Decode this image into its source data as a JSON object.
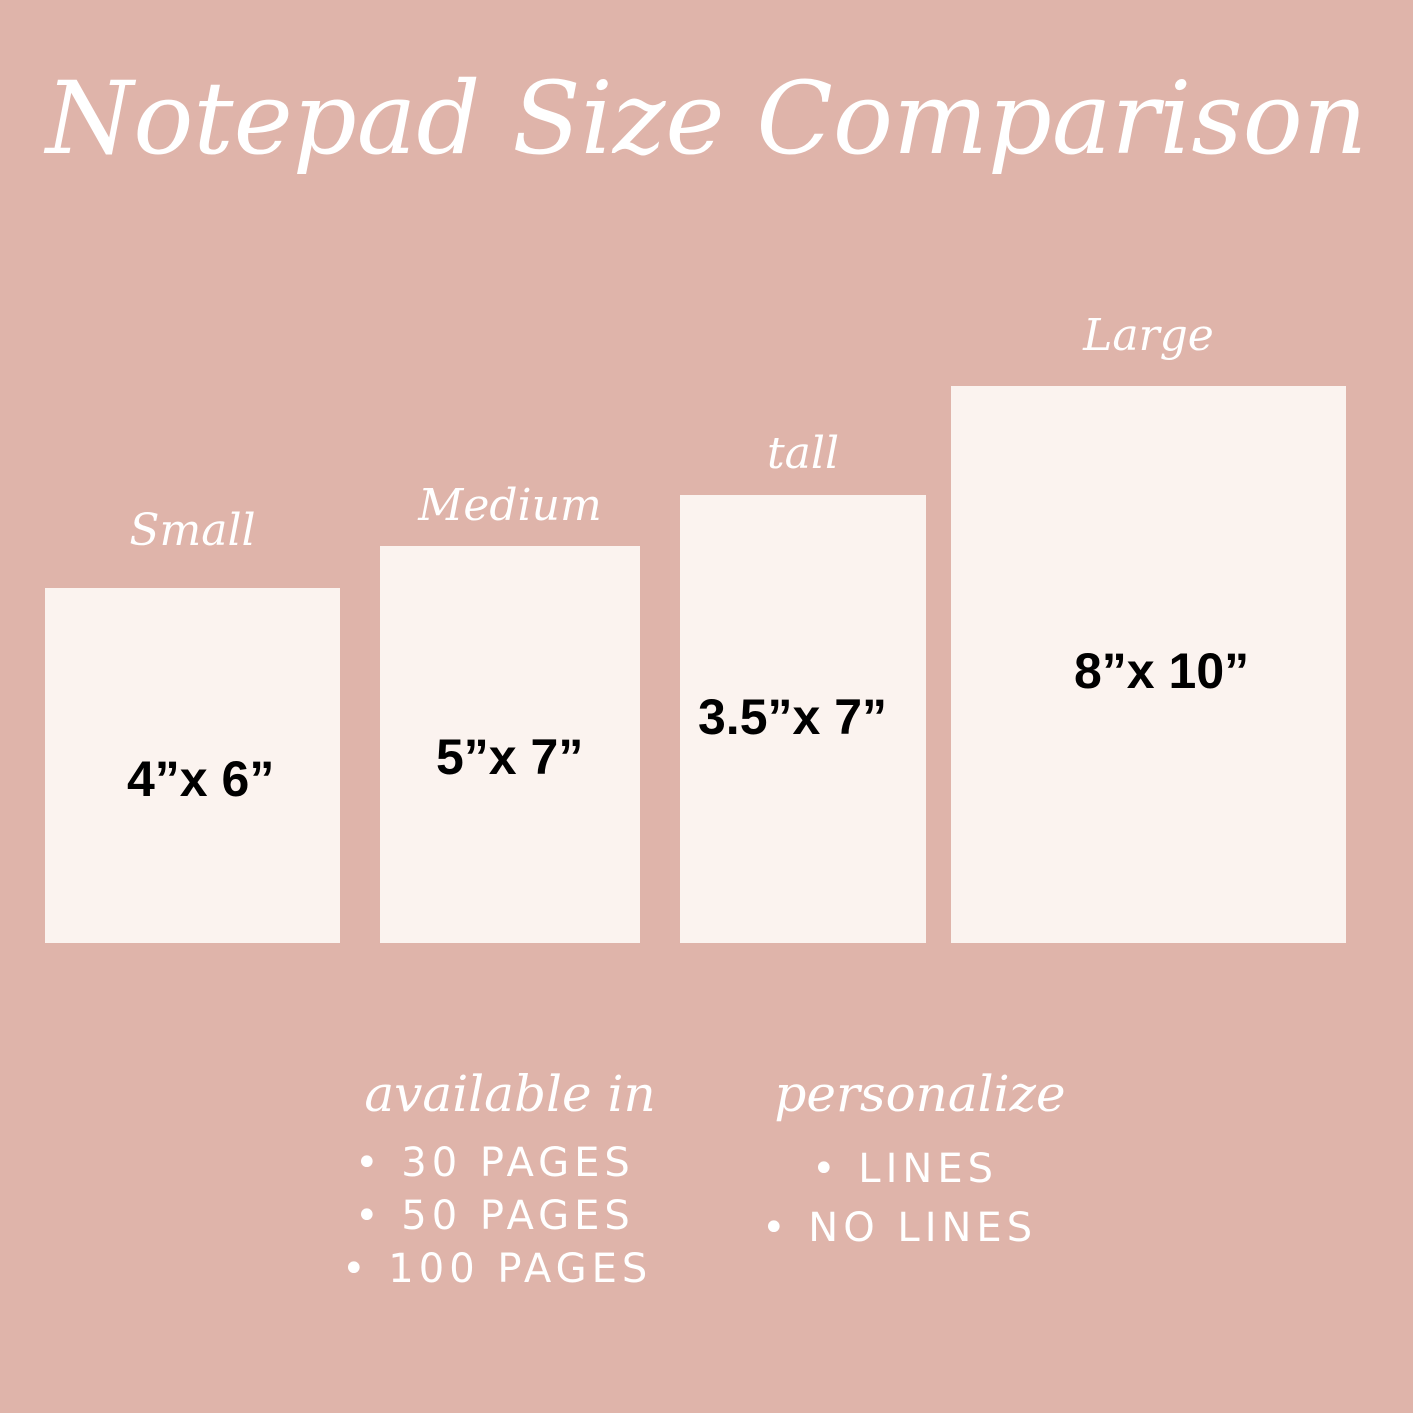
{
  "title": "Notepad Size Comparison",
  "pads": [
    {
      "name": "Small",
      "size": "4”x 6”"
    },
    {
      "name": "Medium",
      "size": "5”x 7”"
    },
    {
      "name": "tall",
      "size": "3.5”x 7”"
    },
    {
      "name": "Large",
      "size": "8”x 10”"
    }
  ],
  "options": [
    {
      "heading": "available in",
      "items": [
        "• 30 PAGES",
        "• 50 PAGES",
        "• 100 PAGES"
      ]
    },
    {
      "heading": "personalize",
      "items": [
        "• LINES",
        "• NO LINES"
      ]
    }
  ]
}
